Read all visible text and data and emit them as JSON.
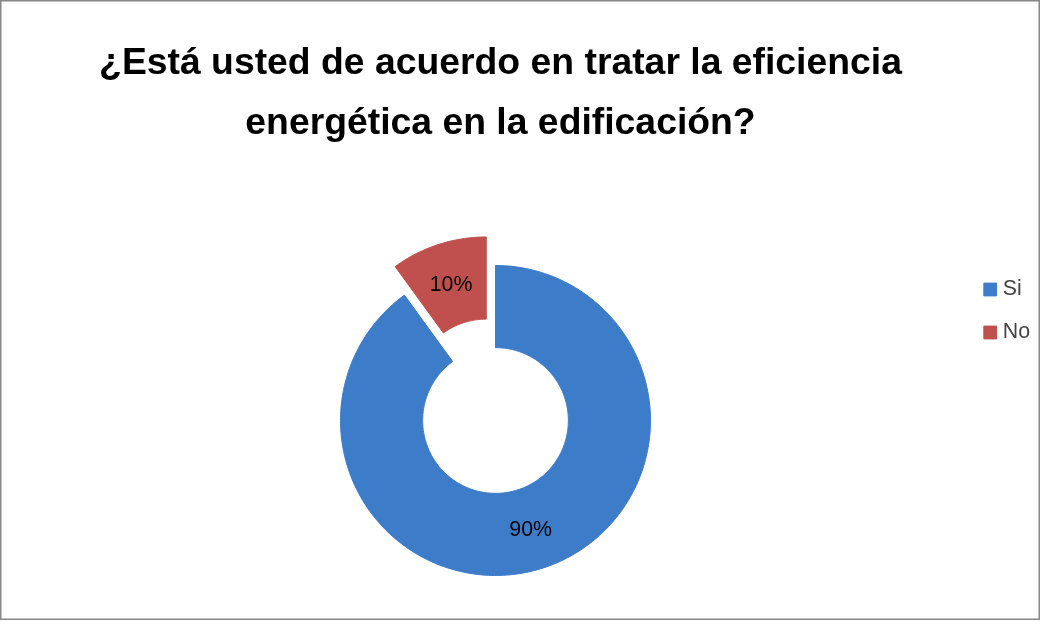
{
  "chart_data": {
    "type": "donut",
    "title": "¿Está usted de acuerdo en tratar la eficiencia energética en la edificación?",
    "categories": [
      "Si",
      "No"
    ],
    "values": [
      90,
      10
    ],
    "colors": [
      "#3d7cc9",
      "#c0504d"
    ],
    "value_labels": [
      "90%",
      "10%"
    ],
    "legend": "right"
  }
}
